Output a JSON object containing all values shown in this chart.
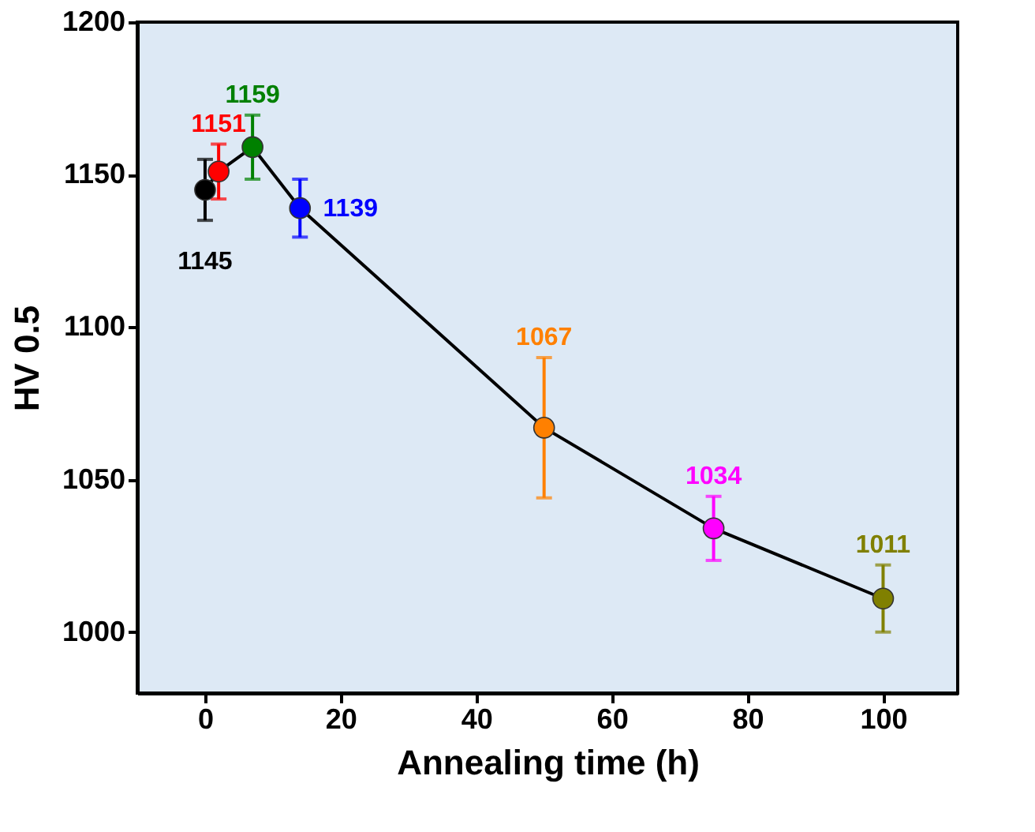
{
  "chart_data": {
    "type": "line",
    "xlabel": "Annealing time (h)",
    "ylabel": "HV 0.5",
    "x": [
      0,
      2,
      7,
      14,
      50,
      75,
      100
    ],
    "series": [
      {
        "color": "#000000",
        "colors": [
          "#000000",
          "#ff0000",
          "#008000",
          "#0000ff",
          "#ff8000",
          "#ff00ff",
          "#808000"
        ],
        "values": [
          1145,
          1151,
          1159,
          1139,
          1067,
          1034,
          1011
        ],
        "errors": [
          10,
          9,
          10.5,
          9.5,
          23,
          10.5,
          11
        ]
      }
    ],
    "xlim": [
      -10,
      111
    ],
    "xticks": [
      0,
      20,
      40,
      60,
      80,
      100
    ],
    "ylim": [
      980,
      1200
    ],
    "yticks": [
      1000,
      1050,
      1100,
      1150,
      1200
    ],
    "marker": "circle",
    "line_style": "solid",
    "data_labels": true,
    "grid": false
  }
}
